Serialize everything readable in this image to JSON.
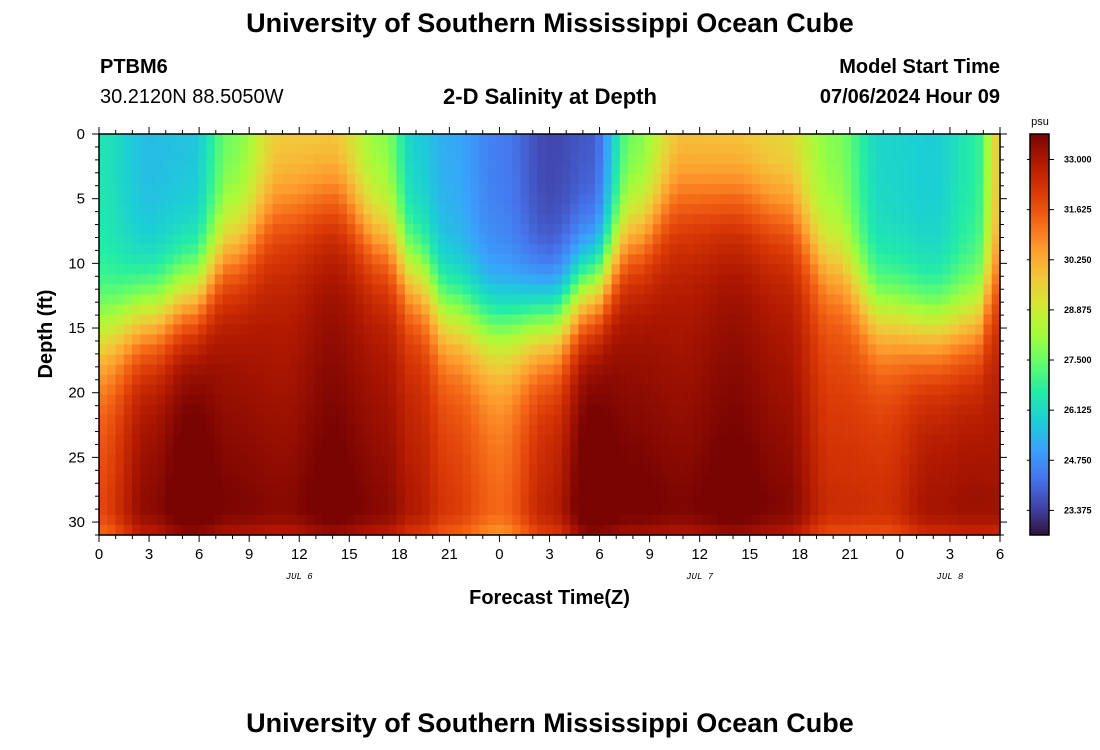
{
  "page": {
    "title": "University of Southern Mississippi Ocean Cube",
    "title_repeat": "University of Southern Mississippi Ocean Cube",
    "station": "PTBM6",
    "coords": "30.2120N  88.5050W",
    "subtitle": "2-D Salinity at Depth",
    "model_start_label": "Model Start Time",
    "model_start_value": "07/06/2024 Hour 09"
  },
  "chart_data": {
    "type": "heatmap",
    "title": "2-D Salinity at Depth",
    "xlabel": "Forecast Time(Z)",
    "ylabel": "Depth (ft)",
    "x_tick_labels": [
      "0",
      "3",
      "6",
      "9",
      "12",
      "15",
      "18",
      "21",
      "0",
      "3",
      "6",
      "9",
      "12",
      "15",
      "18",
      "21",
      "0",
      "3",
      "6"
    ],
    "x_range_hours": [
      0,
      54
    ],
    "date_labels": [
      {
        "label": "JUL 6",
        "hour": 12
      },
      {
        "label": "JUL 7",
        "hour": 36
      },
      {
        "label": "JUL 8",
        "hour": 51
      }
    ],
    "y_ticks": [
      0,
      5,
      10,
      15,
      20,
      25,
      30
    ],
    "ylim": [
      0,
      31
    ],
    "y_inverted": true,
    "colorbar": {
      "unit": "psu",
      "min": 22.7,
      "max": 33.7,
      "tick_labels": [
        "33.000",
        "31.625",
        "30.250",
        "28.875",
        "27.500",
        "26.125",
        "24.750",
        "23.375"
      ],
      "colors": [
        "#30123b",
        "#4145ab",
        "#4675ed",
        "#39a2fc",
        "#1bcfd4",
        "#24eca6",
        "#61fc6c",
        "#a4fc3b",
        "#d1e834",
        "#f3c63a",
        "#fe9b2d",
        "#f36315",
        "#d93806",
        "#b11901",
        "#7a0402"
      ]
    },
    "salinity_profiles": [
      {
        "hour": 0,
        "surface": 26.4,
        "bottom": 31.5,
        "halocline_ft": 15.5
      },
      {
        "hour": 3,
        "surface": 25.5,
        "bottom": 33.0,
        "halocline_ft": 14.0
      },
      {
        "hour": 5.5,
        "surface": 25.6,
        "bottom": 33.6,
        "halocline_ft": 12.5
      },
      {
        "hour": 8,
        "surface": 27.6,
        "bottom": 33.0,
        "halocline_ft": 9.0
      },
      {
        "hour": 11,
        "surface": 29.5,
        "bottom": 32.7,
        "halocline_ft": 6.0
      },
      {
        "hour": 14,
        "surface": 29.4,
        "bottom": 33.1,
        "halocline_ft": 5.0
      },
      {
        "hour": 17,
        "surface": 27.8,
        "bottom": 32.8,
        "halocline_ft": 8.0
      },
      {
        "hour": 19,
        "surface": 25.8,
        "bottom": 32.3,
        "halocline_ft": 11.0
      },
      {
        "hour": 21,
        "surface": 25.2,
        "bottom": 31.7,
        "halocline_ft": 14.0
      },
      {
        "hour": 24,
        "surface": 24.4,
        "bottom": 30.9,
        "halocline_ft": 15.0
      },
      {
        "hour": 27,
        "surface": 23.5,
        "bottom": 32.3,
        "halocline_ft": 14.5
      },
      {
        "hour": 29.5,
        "surface": 23.8,
        "bottom": 33.6,
        "halocline_ft": 12.0
      },
      {
        "hour": 32,
        "surface": 27.5,
        "bottom": 33.1,
        "halocline_ft": 8.0
      },
      {
        "hour": 35,
        "surface": 29.6,
        "bottom": 32.8,
        "halocline_ft": 5.0
      },
      {
        "hour": 38,
        "surface": 29.5,
        "bottom": 33.1,
        "halocline_ft": 5.0
      },
      {
        "hour": 41,
        "surface": 29.2,
        "bottom": 32.8,
        "halocline_ft": 6.0
      },
      {
        "hour": 44,
        "surface": 27.8,
        "bottom": 31.8,
        "halocline_ft": 10.0
      },
      {
        "hour": 47,
        "surface": 26.0,
        "bottom": 31.9,
        "halocline_ft": 14.0
      },
      {
        "hour": 50,
        "surface": 25.8,
        "bottom": 32.7,
        "halocline_ft": 15.0
      },
      {
        "hour": 52.5,
        "surface": 26.6,
        "bottom": 32.8,
        "halocline_ft": 14.5
      },
      {
        "hour": 54,
        "surface": 29.6,
        "bottom": 32.6,
        "halocline_ft": 11.0
      }
    ]
  }
}
